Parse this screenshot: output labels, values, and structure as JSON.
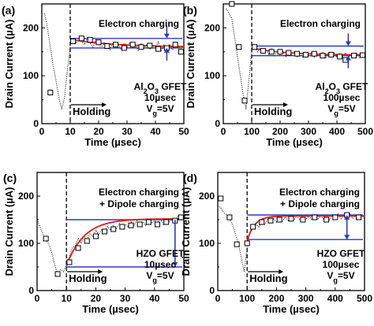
{
  "colors": {
    "fit_curve": "#e31a1c",
    "level_lines": "#2e3bb5",
    "arrows": "#2e3bb5",
    "data": "#222222"
  },
  "shared": {
    "ylabel": "Drain Current (µA)",
    "xlabel": "Time (µsec)",
    "holding_label": "Holding"
  },
  "chart_data": [
    {
      "panel": "(a)",
      "type": "scatter",
      "xlim": [
        0,
        50
      ],
      "ylim": [
        0,
        250
      ],
      "xticks": [
        "0",
        "10",
        "20",
        "30",
        "40",
        "50"
      ],
      "yticks": [
        "0",
        "100",
        "200"
      ],
      "holding_start": 10,
      "annotation": [
        "Electron charging"
      ],
      "device": [
        "Al",
        "2",
        "O",
        "3",
        " GFET"
      ],
      "pulse": "10µsec",
      "vg": [
        "V",
        "g",
        "=5V"
      ],
      "levels": [
        178,
        158
      ],
      "fit_start": 176,
      "fit_end": 160,
      "fit_tau": 15,
      "arrow_x": 44,
      "arrow_dir": "inward",
      "points": [
        [
          3,
          65
        ],
        [
          11,
          172
        ],
        [
          14,
          178
        ],
        [
          17,
          175
        ],
        [
          20,
          170
        ],
        [
          23,
          162
        ],
        [
          26,
          165
        ],
        [
          29,
          158
        ],
        [
          32,
          165
        ],
        [
          35,
          160
        ],
        [
          38,
          163
        ],
        [
          41,
          156
        ],
        [
          44,
          158
        ],
        [
          47,
          165
        ],
        [
          49,
          150
        ]
      ],
      "trace": [
        [
          1,
          230
        ],
        [
          2,
          200
        ],
        [
          3,
          160
        ],
        [
          4,
          120
        ],
        [
          5,
          90
        ],
        [
          6,
          55
        ],
        [
          7,
          30
        ],
        [
          8,
          55
        ],
        [
          9,
          110
        ],
        [
          10,
          165
        ],
        [
          11,
          175
        ],
        [
          12,
          168
        ],
        [
          13,
          180
        ],
        [
          14,
          172
        ],
        [
          15,
          165
        ],
        [
          16,
          178
        ],
        [
          17,
          168
        ],
        [
          18,
          160
        ],
        [
          19,
          175
        ],
        [
          20,
          166
        ],
        [
          21,
          158
        ],
        [
          22,
          170
        ],
        [
          23,
          162
        ],
        [
          24,
          155
        ],
        [
          25,
          168
        ],
        [
          26,
          160
        ],
        [
          27,
          165
        ],
        [
          28,
          154
        ],
        [
          29,
          168
        ],
        [
          30,
          160
        ],
        [
          31,
          170
        ],
        [
          32,
          158
        ],
        [
          33,
          164
        ],
        [
          34,
          152
        ],
        [
          35,
          168
        ],
        [
          36,
          158
        ],
        [
          37,
          166
        ],
        [
          38,
          155
        ],
        [
          39,
          165
        ],
        [
          40,
          160
        ],
        [
          41,
          170
        ],
        [
          42,
          152
        ],
        [
          43,
          164
        ],
        [
          44,
          158
        ],
        [
          45,
          166
        ],
        [
          46,
          154
        ],
        [
          47,
          168
        ],
        [
          48,
          158
        ],
        [
          49,
          162
        ],
        [
          50,
          155
        ]
      ]
    },
    {
      "panel": "(b)",
      "type": "scatter",
      "xlim": [
        0,
        500
      ],
      "ylim": [
        0,
        250
      ],
      "xticks": [
        "0",
        "100",
        "200",
        "300",
        "400",
        "500"
      ],
      "yticks": [
        "0",
        "100",
        "200"
      ],
      "holding_start": 100,
      "annotation": [
        "Electron charging"
      ],
      "device": [
        "Al",
        "2",
        "O",
        "3",
        " GFET"
      ],
      "pulse": "100µsec",
      "vg": [
        "V",
        "g",
        "=5V"
      ],
      "levels": [
        162,
        142
      ],
      "fit_start": 158,
      "fit_end": 143,
      "fit_tau": 120,
      "arrow_x": 440,
      "arrow_dir": "inward",
      "points": [
        [
          30,
          250
        ],
        [
          55,
          160
        ],
        [
          75,
          48
        ],
        [
          110,
          160
        ],
        [
          140,
          152
        ],
        [
          170,
          150
        ],
        [
          200,
          150
        ],
        [
          230,
          148
        ],
        [
          260,
          146
        ],
        [
          290,
          144
        ],
        [
          320,
          146
        ],
        [
          350,
          142
        ],
        [
          380,
          144
        ],
        [
          410,
          140
        ],
        [
          430,
          133
        ],
        [
          460,
          142
        ],
        [
          490,
          143
        ]
      ],
      "trace": [
        [
          10,
          240
        ],
        [
          20,
          230
        ],
        [
          30,
          220
        ],
        [
          40,
          180
        ],
        [
          50,
          140
        ],
        [
          60,
          100
        ],
        [
          70,
          60
        ],
        [
          80,
          30
        ],
        [
          90,
          90
        ],
        [
          100,
          150
        ],
        [
          110,
          162
        ],
        [
          120,
          150
        ],
        [
          130,
          158
        ],
        [
          140,
          146
        ],
        [
          150,
          155
        ],
        [
          160,
          145
        ],
        [
          170,
          156
        ],
        [
          180,
          142
        ],
        [
          190,
          152
        ],
        [
          200,
          144
        ],
        [
          210,
          150
        ],
        [
          220,
          140
        ],
        [
          230,
          152
        ],
        [
          240,
          143
        ],
        [
          250,
          150
        ],
        [
          260,
          140
        ],
        [
          270,
          148
        ],
        [
          280,
          138
        ],
        [
          290,
          150
        ],
        [
          300,
          142
        ],
        [
          310,
          148
        ],
        [
          320,
          138
        ],
        [
          330,
          147
        ],
        [
          340,
          140
        ],
        [
          350,
          148
        ],
        [
          360,
          136
        ],
        [
          370,
          146
        ],
        [
          380,
          140
        ],
        [
          390,
          148
        ],
        [
          400,
          138
        ],
        [
          410,
          146
        ],
        [
          420,
          140
        ],
        [
          430,
          148
        ],
        [
          440,
          138
        ],
        [
          450,
          146
        ],
        [
          460,
          140
        ],
        [
          470,
          148
        ],
        [
          480,
          138
        ],
        [
          490,
          144
        ],
        [
          500,
          140
        ]
      ]
    },
    {
      "panel": "(c)",
      "type": "scatter",
      "xlim": [
        0,
        50
      ],
      "ylim": [
        0,
        250
      ],
      "xticks": [
        "0",
        "10",
        "20",
        "30",
        "40",
        "50"
      ],
      "yticks": [
        "0",
        "100",
        "200"
      ],
      "holding_start": 10,
      "annotation": [
        "Electron charging",
        "+ Dipole charging"
      ],
      "device": [
        "HZO GFET"
      ],
      "pulse": "10µsec",
      "vg": [
        "V",
        "g",
        "=5V"
      ],
      "levels": [
        150,
        50
      ],
      "fit_start": 52,
      "fit_end": 152,
      "fit_tau": 6,
      "arrow_x": 47,
      "arrow_dir": "down",
      "points": [
        [
          3,
          110
        ],
        [
          7,
          35
        ],
        [
          11,
          60
        ],
        [
          14,
          90
        ],
        [
          17,
          105
        ],
        [
          20,
          115
        ],
        [
          23,
          125
        ],
        [
          26,
          130
        ],
        [
          29,
          135
        ],
        [
          32,
          138
        ],
        [
          35,
          140
        ],
        [
          38,
          145
        ],
        [
          41,
          140
        ],
        [
          44,
          145
        ],
        [
          47,
          148
        ],
        [
          49,
          155
        ]
      ],
      "trace": [
        [
          0,
          150
        ],
        [
          1,
          135
        ],
        [
          2,
          120
        ],
        [
          3,
          108
        ],
        [
          4,
          98
        ],
        [
          5,
          80
        ],
        [
          6,
          55
        ],
        [
          7,
          35
        ],
        [
          8,
          45
        ],
        [
          9,
          40
        ],
        [
          10,
          55
        ],
        [
          11,
          70
        ],
        [
          12,
          90
        ],
        [
          13,
          95
        ],
        [
          14,
          110
        ],
        [
          15,
          100
        ],
        [
          16,
          115
        ],
        [
          17,
          108
        ],
        [
          18,
          120
        ],
        [
          19,
          115
        ],
        [
          20,
          128
        ],
        [
          21,
          118
        ],
        [
          22,
          130
        ],
        [
          23,
          125
        ],
        [
          24,
          135
        ],
        [
          25,
          128
        ],
        [
          26,
          138
        ],
        [
          27,
          130
        ],
        [
          28,
          142
        ],
        [
          29,
          134
        ],
        [
          30,
          140
        ],
        [
          31,
          136
        ],
        [
          32,
          145
        ],
        [
          33,
          138
        ],
        [
          34,
          148
        ],
        [
          35,
          140
        ],
        [
          36,
          146
        ],
        [
          37,
          138
        ],
        [
          38,
          150
        ],
        [
          39,
          142
        ],
        [
          40,
          148
        ],
        [
          41,
          144
        ],
        [
          42,
          152
        ],
        [
          43,
          140
        ],
        [
          44,
          150
        ],
        [
          45,
          145
        ],
        [
          46,
          152
        ],
        [
          47,
          146
        ],
        [
          48,
          158
        ],
        [
          49,
          150
        ],
        [
          50,
          154
        ]
      ]
    },
    {
      "panel": "(d)",
      "type": "scatter",
      "xlim": [
        0,
        500
      ],
      "ylim": [
        0,
        250
      ],
      "xticks": [
        "0",
        "100",
        "200",
        "300",
        "400",
        "500"
      ],
      "yticks": [
        "0",
        "100",
        "200"
      ],
      "holding_start": 100,
      "annotation": [
        "Electron charging",
        "+ Dipole charging"
      ],
      "device": [
        "HZO GFET"
      ],
      "pulse": "100µsec",
      "vg": [
        "V",
        "g",
        "=5V"
      ],
      "levels": [
        160,
        108
      ],
      "fit_start": 105,
      "fit_end": 158,
      "fit_tau": 25,
      "arrow_x": 440,
      "arrow_dir": "up",
      "points": [
        [
          10,
          195
        ],
        [
          40,
          155
        ],
        [
          65,
          98
        ],
        [
          100,
          100
        ],
        [
          120,
          135
        ],
        [
          150,
          145
        ],
        [
          180,
          148
        ],
        [
          210,
          150
        ],
        [
          250,
          152
        ],
        [
          290,
          150
        ],
        [
          330,
          155
        ],
        [
          370,
          150
        ],
        [
          400,
          155
        ],
        [
          440,
          160
        ],
        [
          480,
          155
        ]
      ],
      "trace": [
        [
          0,
          180
        ],
        [
          10,
          175
        ],
        [
          20,
          165
        ],
        [
          30,
          160
        ],
        [
          40,
          150
        ],
        [
          50,
          140
        ],
        [
          60,
          120
        ],
        [
          70,
          100
        ],
        [
          80,
          70
        ],
        [
          90,
          40
        ],
        [
          100,
          90
        ],
        [
          105,
          110
        ],
        [
          110,
          125
        ],
        [
          120,
          132
        ],
        [
          130,
          140
        ],
        [
          140,
          135
        ],
        [
          150,
          146
        ],
        [
          160,
          140
        ],
        [
          170,
          150
        ],
        [
          180,
          143
        ],
        [
          190,
          152
        ],
        [
          200,
          145
        ],
        [
          210,
          153
        ],
        [
          220,
          146
        ],
        [
          230,
          156
        ],
        [
          240,
          148
        ],
        [
          250,
          156
        ],
        [
          260,
          150
        ],
        [
          270,
          158
        ],
        [
          280,
          149
        ],
        [
          290,
          157
        ],
        [
          300,
          150
        ],
        [
          310,
          158
        ],
        [
          320,
          151
        ],
        [
          330,
          160
        ],
        [
          340,
          150
        ],
        [
          350,
          158
        ],
        [
          360,
          152
        ],
        [
          370,
          160
        ],
        [
          380,
          150
        ],
        [
          390,
          160
        ],
        [
          400,
          152
        ],
        [
          410,
          162
        ],
        [
          420,
          152
        ],
        [
          430,
          160
        ],
        [
          440,
          154
        ],
        [
          450,
          162
        ],
        [
          460,
          152
        ],
        [
          470,
          160
        ],
        [
          480,
          154
        ],
        [
          490,
          158
        ],
        [
          500,
          152
        ]
      ]
    }
  ]
}
